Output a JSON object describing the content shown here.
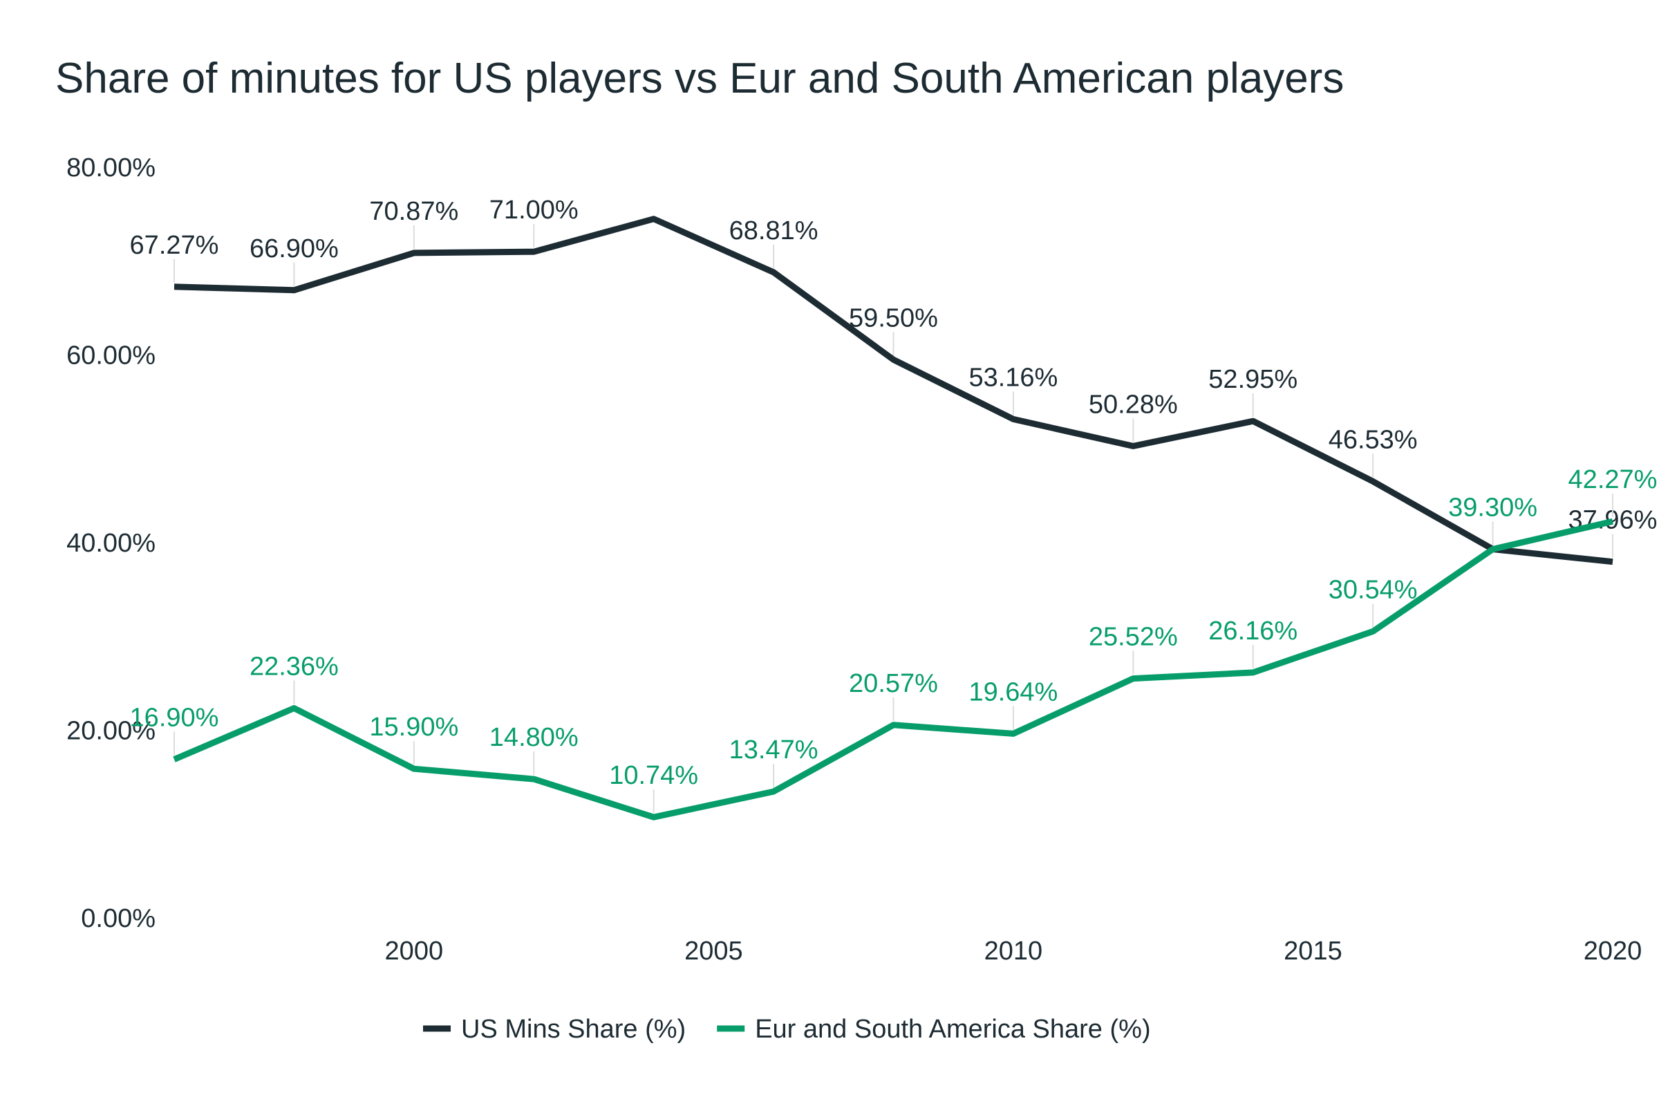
{
  "chart_data": {
    "type": "line",
    "title": "Share of minutes for US players vs Eur and South American players",
    "xlabel": "",
    "ylabel": "",
    "x": [
      1996,
      1998,
      2000,
      2002,
      2004,
      2006,
      2008,
      2010,
      2012,
      2014,
      2016,
      2018,
      2020
    ],
    "xlim": [
      1996,
      2020
    ],
    "ylim": [
      0,
      80
    ],
    "x_ticks": [
      2000,
      2005,
      2010,
      2015,
      2020
    ],
    "x_tick_labels": [
      "2000",
      "2005",
      "2010",
      "2015",
      "2020"
    ],
    "y_ticks": [
      0,
      20,
      40,
      60,
      80
    ],
    "y_tick_labels": [
      "0.00%",
      "20.00%",
      "40.00%",
      "60.00%",
      "80.00%"
    ],
    "grid": false,
    "legend_position": "bottom",
    "series": [
      {
        "name": "US Mins Share (%)",
        "color": "#1d2b33",
        "values": [
          67.27,
          66.9,
          70.87,
          71.0,
          74.5,
          68.81,
          59.5,
          53.16,
          50.28,
          52.95,
          46.53,
          39.3,
          37.96
        ],
        "labels": [
          "67.27%",
          "66.90%",
          "70.87%",
          "71.00%",
          "",
          "68.81%",
          "59.50%",
          "53.16%",
          "50.28%",
          "52.95%",
          "46.53%",
          "",
          "37.96%"
        ]
      },
      {
        "name": "Eur and South America Share (%)",
        "color": "#079d6b",
        "values": [
          16.9,
          22.36,
          15.9,
          14.8,
          10.74,
          13.47,
          20.57,
          19.64,
          25.52,
          26.16,
          30.54,
          39.3,
          42.27
        ],
        "labels": [
          "16.90%",
          "22.36%",
          "15.90%",
          "14.80%",
          "10.74%",
          "13.47%",
          "20.57%",
          "19.64%",
          "25.52%",
          "26.16%",
          "30.54%",
          "39.30%",
          "42.27%"
        ]
      }
    ]
  }
}
